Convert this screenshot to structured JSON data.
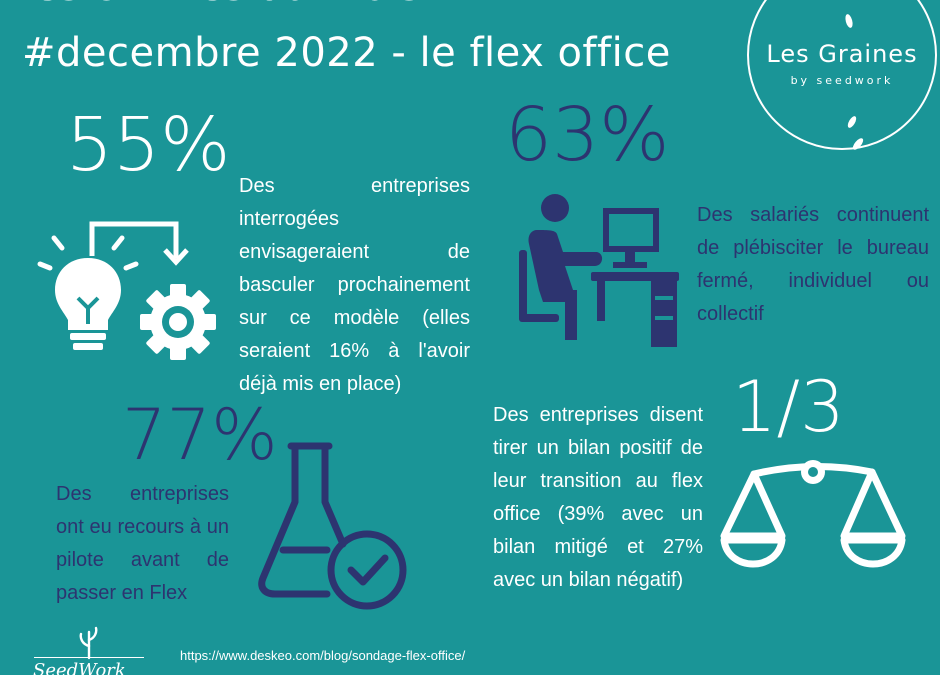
{
  "title": {
    "line1": "les chiffres du mois",
    "line2": "#decembre 2022 - le flex office"
  },
  "logo": {
    "name": "Les Graines",
    "subtitle": "by seedwork"
  },
  "stats": [
    {
      "value": "55%",
      "text": "Des entreprises interrogées envisageraient de basculer prochainement sur ce modèle (elles seraient 16% à l'avoir déjà mis en place)",
      "icon": "lightbulb-gear-icon"
    },
    {
      "value": "63%",
      "text": "Des salariés continuent de plébisciter le bureau fermé, individuel ou collectif",
      "icon": "person-at-desk-icon"
    },
    {
      "value": "77%",
      "text": "Des entreprises ont eu recours à un pilote avant de passer en Flex",
      "icon": "flask-check-icon"
    },
    {
      "value": "1/3",
      "text": "Des entreprises disent tirer un bilan positif de leur transition au flex office (39% avec un bilan mitigé et 27% avec un bilan négatif)",
      "icon": "balance-scale-icon"
    }
  ],
  "footer": {
    "source_url": "https://www.deskeo.com/blog/sondage-flex-office/",
    "brand": "SeedWork"
  },
  "colors": {
    "background": "#1a9597",
    "navy": "#2d3470",
    "white": "#ffffff"
  }
}
